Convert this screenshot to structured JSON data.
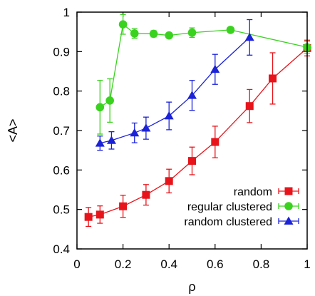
{
  "chart_data": {
    "type": "line",
    "title": "",
    "xlabel": "ρ",
    "ylabel": "<A>",
    "xlim": [
      0,
      1
    ],
    "ylim": [
      0.4,
      1.0
    ],
    "xticks": [
      "0",
      "0.2",
      "0.4",
      "0.6",
      "0.8",
      "1"
    ],
    "yticks": [
      "0.4",
      "0.5",
      "0.6",
      "0.7",
      "0.8",
      "0.9",
      "1"
    ],
    "grid": false,
    "legend_position": "bottom-right",
    "series": [
      {
        "name": "random",
        "color": "#e8141b",
        "marker": "square",
        "x": [
          0.05,
          0.1,
          0.2,
          0.3,
          0.4,
          0.5,
          0.6,
          0.75,
          0.85,
          1.0
        ],
        "y": [
          0.481,
          0.487,
          0.508,
          0.537,
          0.572,
          0.623,
          0.671,
          0.762,
          0.832,
          0.909
        ],
        "err": [
          0.024,
          0.022,
          0.028,
          0.026,
          0.03,
          0.035,
          0.04,
          0.042,
          0.065,
          0.02
        ]
      },
      {
        "name": "regular clustered",
        "color": "#3ad21f",
        "marker": "circle",
        "x": [
          0.1,
          0.143,
          0.2,
          0.25,
          0.333,
          0.4,
          0.5,
          0.667,
          1.0
        ],
        "y": [
          0.759,
          0.776,
          0.969,
          0.946,
          0.945,
          0.941,
          0.948,
          0.955,
          0.911
        ],
        "err": [
          0.068,
          0.055,
          0.025,
          0.012,
          0.008,
          0.006,
          0.012,
          0.006,
          0.015
        ]
      },
      {
        "name": "random clustered",
        "color": "#1b22d8",
        "marker": "triangle",
        "x": [
          0.1,
          0.15,
          0.25,
          0.3,
          0.4,
          0.5,
          0.6,
          0.75
        ],
        "y": [
          0.668,
          0.675,
          0.694,
          0.706,
          0.737,
          0.789,
          0.855,
          0.936
        ],
        "err": [
          0.018,
          0.022,
          0.025,
          0.028,
          0.035,
          0.038,
          0.038,
          0.045
        ]
      }
    ]
  }
}
